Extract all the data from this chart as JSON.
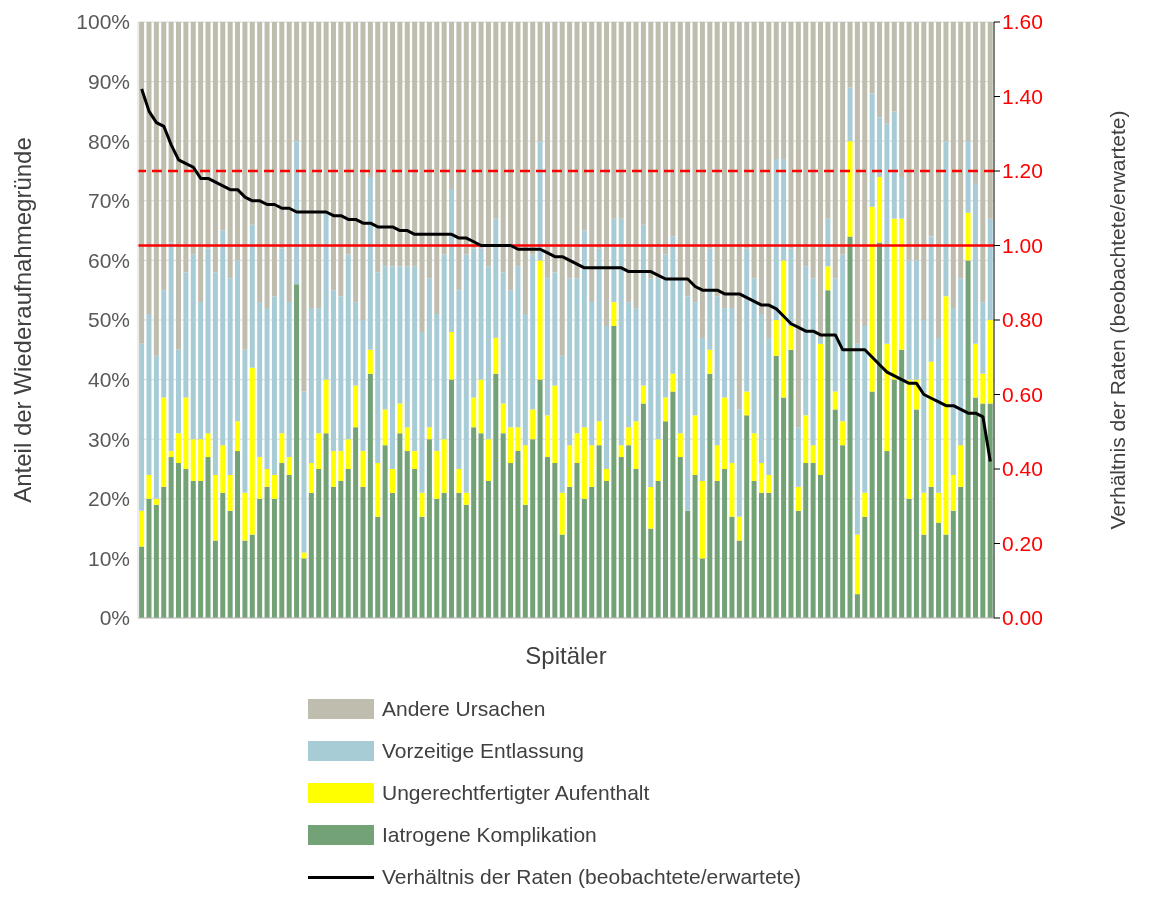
{
  "chart_data": {
    "type": "bar",
    "stacked": true,
    "xlabel": "Spitäler",
    "ylabel": "Anteil der Wiederaufnahmegründe",
    "y2label": "Verhältnis der Raten (beobachtete/erwartete)",
    "categories": [
      null,
      null,
      null,
      null,
      null,
      null,
      null,
      null,
      null,
      null,
      null,
      null,
      null,
      null,
      null,
      null,
      null,
      null,
      null,
      null,
      null,
      null,
      null,
      null,
      null,
      null,
      null,
      null,
      null,
      null,
      null,
      null,
      null,
      null,
      null,
      null,
      null,
      null,
      null,
      null,
      null,
      null,
      null,
      null,
      null,
      null,
      null,
      null,
      null,
      null,
      null,
      null,
      null,
      null,
      null,
      null,
      null,
      null,
      null,
      null,
      null,
      null,
      null,
      null,
      null,
      null,
      null,
      null,
      null,
      null,
      null,
      null,
      null,
      null,
      null,
      null,
      null,
      null,
      null,
      null,
      null,
      null,
      null,
      null,
      null,
      null,
      null,
      null,
      null,
      null,
      null,
      null,
      null,
      null,
      null,
      null,
      null,
      null,
      null,
      null,
      null,
      null,
      null,
      null,
      null,
      null,
      null,
      null,
      null,
      null,
      null,
      null,
      null,
      null,
      null,
      null
    ],
    "series": [
      {
        "name": "Iatrogene Komplikation",
        "color": "#72a276",
        "values": [
          12,
          20,
          19,
          22,
          27,
          26,
          25,
          23,
          23,
          27,
          13,
          21,
          18,
          28,
          13,
          14,
          20,
          22,
          20,
          26,
          24,
          56,
          10,
          21,
          25,
          31,
          22,
          23,
          25,
          32,
          22,
          41,
          17,
          29,
          21,
          31,
          28,
          25,
          17,
          30,
          20,
          21,
          40,
          21,
          19,
          32,
          31,
          23,
          41,
          31,
          26,
          28,
          19,
          30,
          40,
          27,
          26,
          14,
          22,
          26,
          20,
          22,
          29,
          23,
          49,
          27,
          29,
          25,
          36,
          15,
          23,
          33,
          38,
          27,
          18,
          24,
          10,
          41,
          23,
          25,
          17,
          13,
          34,
          23,
          21,
          21,
          44,
          37,
          45,
          18,
          26,
          26,
          24,
          55,
          35,
          29,
          64,
          4,
          17,
          38,
          63,
          28,
          40,
          45,
          20,
          35,
          14,
          22,
          16,
          14,
          18,
          22,
          60,
          37,
          36,
          36
        ]
      },
      {
        "name": "Ungerechtfertigter Aufenthalt",
        "color": "#ffff00",
        "values": [
          6,
          4,
          1,
          15,
          1,
          5,
          12,
          7,
          7,
          4,
          11,
          8,
          6,
          5,
          8,
          28,
          7,
          3,
          4,
          5,
          3,
          0,
          1,
          5,
          6,
          9,
          6,
          5,
          5,
          7,
          6,
          4,
          9,
          6,
          4,
          5,
          4,
          3,
          4,
          2,
          8,
          9,
          8,
          4,
          2,
          5,
          9,
          7,
          6,
          5,
          6,
          4,
          10,
          5,
          20,
          7,
          13,
          7,
          7,
          5,
          12,
          7,
          4,
          2,
          4,
          2,
          3,
          8,
          3,
          7,
          7,
          4,
          3,
          4,
          0,
          10,
          13,
          4,
          6,
          12,
          9,
          4,
          4,
          8,
          5,
          3,
          6,
          23,
          4,
          4,
          8,
          3,
          22,
          4,
          3,
          4,
          16,
          10,
          4,
          31,
          11,
          18,
          27,
          22,
          20,
          5,
          7,
          21,
          5,
          40,
          6,
          7,
          8,
          9,
          5,
          14
        ]
      },
      {
        "name": "Vorzeitige Entlassung",
        "color": "#a8ccd6",
        "values": [
          28,
          27,
          24,
          18,
          35,
          14,
          21,
          31,
          23,
          31,
          34,
          36,
          33,
          27,
          24,
          24,
          26,
          27,
          30,
          31,
          26,
          24,
          27,
          26,
          21,
          28,
          27,
          26,
          31,
          14,
          22,
          29,
          32,
          24,
          34,
          23,
          27,
          31,
          27,
          25,
          23,
          31,
          24,
          30,
          40,
          25,
          22,
          29,
          20,
          22,
          23,
          27,
          22,
          26,
          20,
          23,
          19,
          23,
          28,
          26,
          33,
          24,
          29,
          24,
          14,
          38,
          21,
          19,
          27,
          35,
          27,
          24,
          23,
          26,
          36,
          19,
          24,
          17,
          25,
          15,
          26,
          18,
          24,
          26,
          25,
          23,
          27,
          17,
          13,
          10,
          25,
          28,
          1,
          8,
          19,
          28,
          9,
          32,
          28,
          19,
          10,
          37,
          18,
          7,
          20,
          20,
          29,
          21,
          26,
          26,
          28,
          28,
          12,
          27,
          12,
          17
        ]
      },
      {
        "name": "Andere Ursachen",
        "color": "#bfbdae",
        "values": [
          54,
          49,
          56,
          45,
          37,
          55,
          42,
          39,
          47,
          38,
          42,
          35,
          43,
          40,
          55,
          34,
          47,
          48,
          46,
          38,
          47,
          20,
          62,
          48,
          48,
          32,
          45,
          46,
          39,
          47,
          50,
          26,
          42,
          41,
          41,
          41,
          41,
          41,
          52,
          43,
          49,
          39,
          28,
          45,
          39,
          38,
          38,
          41,
          33,
          42,
          45,
          41,
          49,
          39,
          20,
          43,
          42,
          56,
          43,
          43,
          35,
          47,
          38,
          51,
          33,
          33,
          47,
          48,
          34,
          43,
          43,
          39,
          36,
          43,
          46,
          47,
          53,
          38,
          46,
          48,
          48,
          65,
          38,
          43,
          49,
          53,
          23,
          23,
          38,
          68,
          41,
          43,
          53,
          33,
          43,
          39,
          11,
          54,
          51,
          12,
          16,
          17,
          15,
          26,
          40,
          40,
          50,
          36,
          53,
          20,
          48,
          43,
          20,
          27,
          47,
          33
        ]
      },
      {
        "name": "Verhältnis der Raten (beobachtete/erwartete)",
        "type": "line",
        "axis": "y2",
        "color": "#000000",
        "values": [
          1.42,
          1.36,
          1.33,
          1.32,
          1.27,
          1.23,
          1.22,
          1.21,
          1.18,
          1.18,
          1.17,
          1.16,
          1.15,
          1.15,
          1.13,
          1.12,
          1.12,
          1.11,
          1.11,
          1.1,
          1.1,
          1.09,
          1.09,
          1.09,
          1.09,
          1.09,
          1.08,
          1.08,
          1.07,
          1.07,
          1.06,
          1.06,
          1.05,
          1.05,
          1.05,
          1.04,
          1.04,
          1.03,
          1.03,
          1.03,
          1.03,
          1.03,
          1.03,
          1.02,
          1.02,
          1.01,
          1.0,
          1.0,
          1.0,
          1.0,
          1.0,
          0.99,
          0.99,
          0.99,
          0.99,
          0.98,
          0.97,
          0.97,
          0.96,
          0.95,
          0.94,
          0.94,
          0.94,
          0.94,
          0.94,
          0.94,
          0.93,
          0.93,
          0.93,
          0.93,
          0.92,
          0.91,
          0.91,
          0.91,
          0.91,
          0.89,
          0.88,
          0.88,
          0.88,
          0.87,
          0.87,
          0.87,
          0.86,
          0.85,
          0.84,
          0.84,
          0.83,
          0.81,
          0.79,
          0.78,
          0.77,
          0.77,
          0.76,
          0.76,
          0.76,
          0.72,
          0.72,
          0.72,
          0.72,
          0.7,
          0.68,
          0.66,
          0.65,
          0.64,
          0.63,
          0.63,
          0.6,
          0.59,
          0.58,
          0.57,
          0.57,
          0.56,
          0.55,
          0.55,
          0.54,
          0.42
        ]
      }
    ],
    "ylim": [
      0,
      100
    ],
    "yticks": [
      {
        "value": 0,
        "label": "0%"
      },
      {
        "value": 10,
        "label": "10%"
      },
      {
        "value": 20,
        "label": "20%"
      },
      {
        "value": 30,
        "label": "30%"
      },
      {
        "value": 40,
        "label": "40%"
      },
      {
        "value": 50,
        "label": "50%"
      },
      {
        "value": 60,
        "label": "60%"
      },
      {
        "value": 70,
        "label": "70%"
      },
      {
        "value": 80,
        "label": "80%"
      },
      {
        "value": 90,
        "label": "90%"
      },
      {
        "value": 100,
        "label": "100%"
      }
    ],
    "y2lim": [
      0,
      1.6
    ],
    "y2ticks": [
      {
        "value": 0,
        "label": "0.00"
      },
      {
        "value": 0.2,
        "label": "0.20"
      },
      {
        "value": 0.4,
        "label": "0.40"
      },
      {
        "value": 0.6,
        "label": "0.60"
      },
      {
        "value": 0.8,
        "label": "0.80"
      },
      {
        "value": 1,
        "label": "1.00"
      },
      {
        "value": 1.2,
        "label": "1.20"
      },
      {
        "value": 1.4,
        "label": "1.40"
      },
      {
        "value": 1.6,
        "label": "1.60"
      }
    ],
    "ref_lines": [
      {
        "axis": "y2",
        "value": 1.2,
        "color": "#ff0000",
        "line_style": "dashed"
      },
      {
        "axis": "y2",
        "value": 1,
        "color": "#ff0000",
        "line_style": "solid"
      }
    ],
    "grid": "y",
    "legend": "bottom",
    "marker": "none"
  }
}
